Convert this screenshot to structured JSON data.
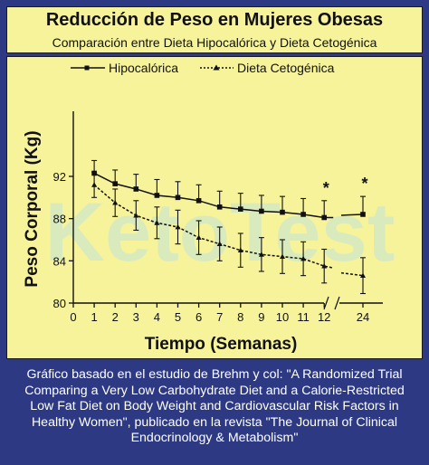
{
  "header": {
    "title": "Reducción de Peso en Mujeres Obesas",
    "subtitle": "Comparación entre Dieta Hipocalórica y Dieta Cetogénica"
  },
  "watermark": "KetoTest",
  "caption_lines": [
    "Gráfico basado en el estudio de Brehm y col: \"A Randomized Trial",
    "Comparing a Very Low Carbohydrate Diet and a Calorie-Restricted",
    "Low Fat Diet on Body Weight and Cardiovascular Risk Factors in",
    "Healthy Women\", publicado en la revista \"The Journal of Clinical",
    "Endocrinology & Metabolism\""
  ],
  "colors": {
    "background": "#2d3a83",
    "panel": "#f7f39b",
    "watermark": "#cfe8c9",
    "ink": "#111111"
  },
  "chart_data": {
    "type": "line",
    "xlabel": "Tiempo (Semanas)",
    "ylabel": "Peso Corporal (Kg)",
    "ylim": [
      80,
      95
    ],
    "yticks": [
      80,
      84,
      88,
      92
    ],
    "xticks_main": [
      "0",
      "1",
      "2",
      "3",
      "4",
      "5",
      "6",
      "7",
      "8",
      "9",
      "10",
      "11",
      "12"
    ],
    "xticks_break": [
      "24"
    ],
    "axis_break": "between week 12 and week 24",
    "legend_placement": "top",
    "significance_marks": [
      {
        "week": 12,
        "label": "*"
      },
      {
        "week": 24,
        "label": "*"
      }
    ],
    "series": [
      {
        "name": "Hipocalórica",
        "line_style": "solid",
        "marker": "square",
        "x": [
          1,
          2,
          3,
          4,
          5,
          6,
          7,
          8,
          9,
          10,
          11,
          12,
          24
        ],
        "y": [
          92.3,
          91.3,
          90.8,
          90.2,
          90.0,
          89.7,
          89.1,
          88.9,
          88.7,
          88.6,
          88.4,
          88.1,
          88.4
        ],
        "err": [
          1.2,
          1.3,
          1.4,
          1.5,
          1.5,
          1.5,
          1.5,
          1.5,
          1.5,
          1.5,
          1.5,
          1.6,
          1.7
        ]
      },
      {
        "name": "Dieta Cetogénica",
        "line_style": "dashed",
        "marker": "triangle",
        "x": [
          1,
          2,
          3,
          4,
          5,
          6,
          7,
          8,
          9,
          10,
          11,
          12,
          24
        ],
        "y": [
          91.2,
          89.5,
          88.3,
          87.6,
          87.2,
          86.2,
          85.6,
          85.0,
          84.6,
          84.4,
          84.2,
          83.5,
          82.6
        ],
        "err": [
          1.2,
          1.3,
          1.4,
          1.5,
          1.6,
          1.6,
          1.6,
          1.6,
          1.6,
          1.6,
          1.6,
          1.6,
          1.7
        ]
      }
    ]
  }
}
